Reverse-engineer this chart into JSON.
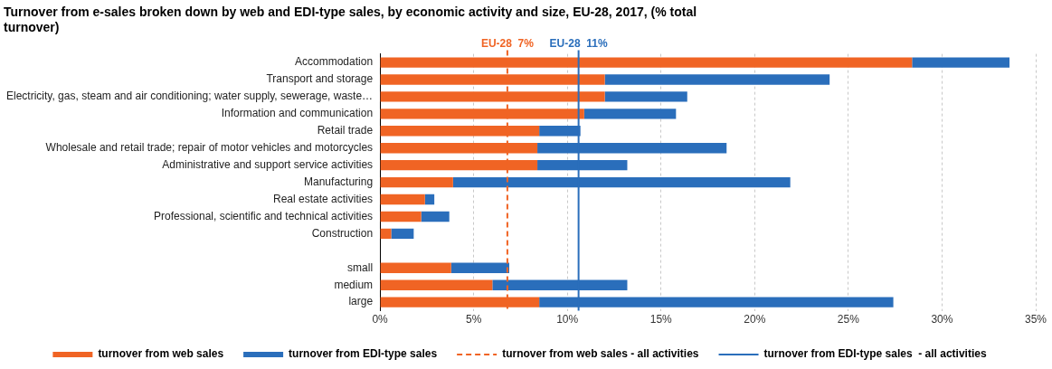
{
  "chart_data": {
    "type": "bar",
    "orientation": "horizontal",
    "stacked": true,
    "title": "Turnover from e-sales broken down by web and EDI-type sales, by economic activity and size, EU-28, 2017, (% total turnover)",
    "categories": [
      "Accommodation",
      "Transport and storage",
      "Electricity, gas, steam and air conditioning; water supply, sewerage, waste…",
      "Information and communication",
      "Retail trade",
      "Wholesale and retail trade; repair of motor vehicles and motorcycles",
      "Administrative and support service activities",
      "Manufacturing",
      "Real estate activities",
      "Professional, scientific and technical activities",
      "Construction",
      null,
      "small",
      "medium",
      "large"
    ],
    "series": [
      {
        "name": "turnover from web sales",
        "color": "#f06424",
        "values": [
          28.4,
          12.0,
          12.0,
          10.9,
          8.5,
          8.4,
          8.4,
          3.9,
          2.4,
          2.2,
          0.6,
          null,
          3.8,
          6.0,
          8.5
        ]
      },
      {
        "name": "turnover from EDI-type sales",
        "color": "#2a6ebb",
        "values": [
          5.2,
          12.0,
          4.4,
          4.9,
          2.2,
          10.1,
          4.8,
          18.0,
          0.5,
          1.5,
          1.2,
          null,
          3.1,
          7.2,
          18.9
        ]
      }
    ],
    "xlim": [
      0,
      35
    ],
    "xticks": [
      {
        "value": 0,
        "label": "0%"
      },
      {
        "value": 5,
        "label": "5%"
      },
      {
        "value": 10,
        "label": "10%"
      },
      {
        "value": 15,
        "label": "15%"
      },
      {
        "value": 20,
        "label": "20%"
      },
      {
        "value": 25,
        "label": "25%"
      },
      {
        "value": 30,
        "label": "30%"
      },
      {
        "value": 35,
        "label": "35%"
      }
    ],
    "ref_lines": [
      {
        "axis": "x",
        "value": 6.8,
        "label": "turnover from web sales - all activities",
        "color": "#f06424",
        "line_style": "dashed"
      },
      {
        "axis": "x",
        "value": 10.6,
        "label": "turnover from EDI-type sales  - all activities",
        "color": "#2a6ebb",
        "line_style": "solid"
      }
    ],
    "annotations": [
      "EU-28  7%",
      "EU-28  11%"
    ],
    "grid": "x",
    "legend": "bottom"
  }
}
